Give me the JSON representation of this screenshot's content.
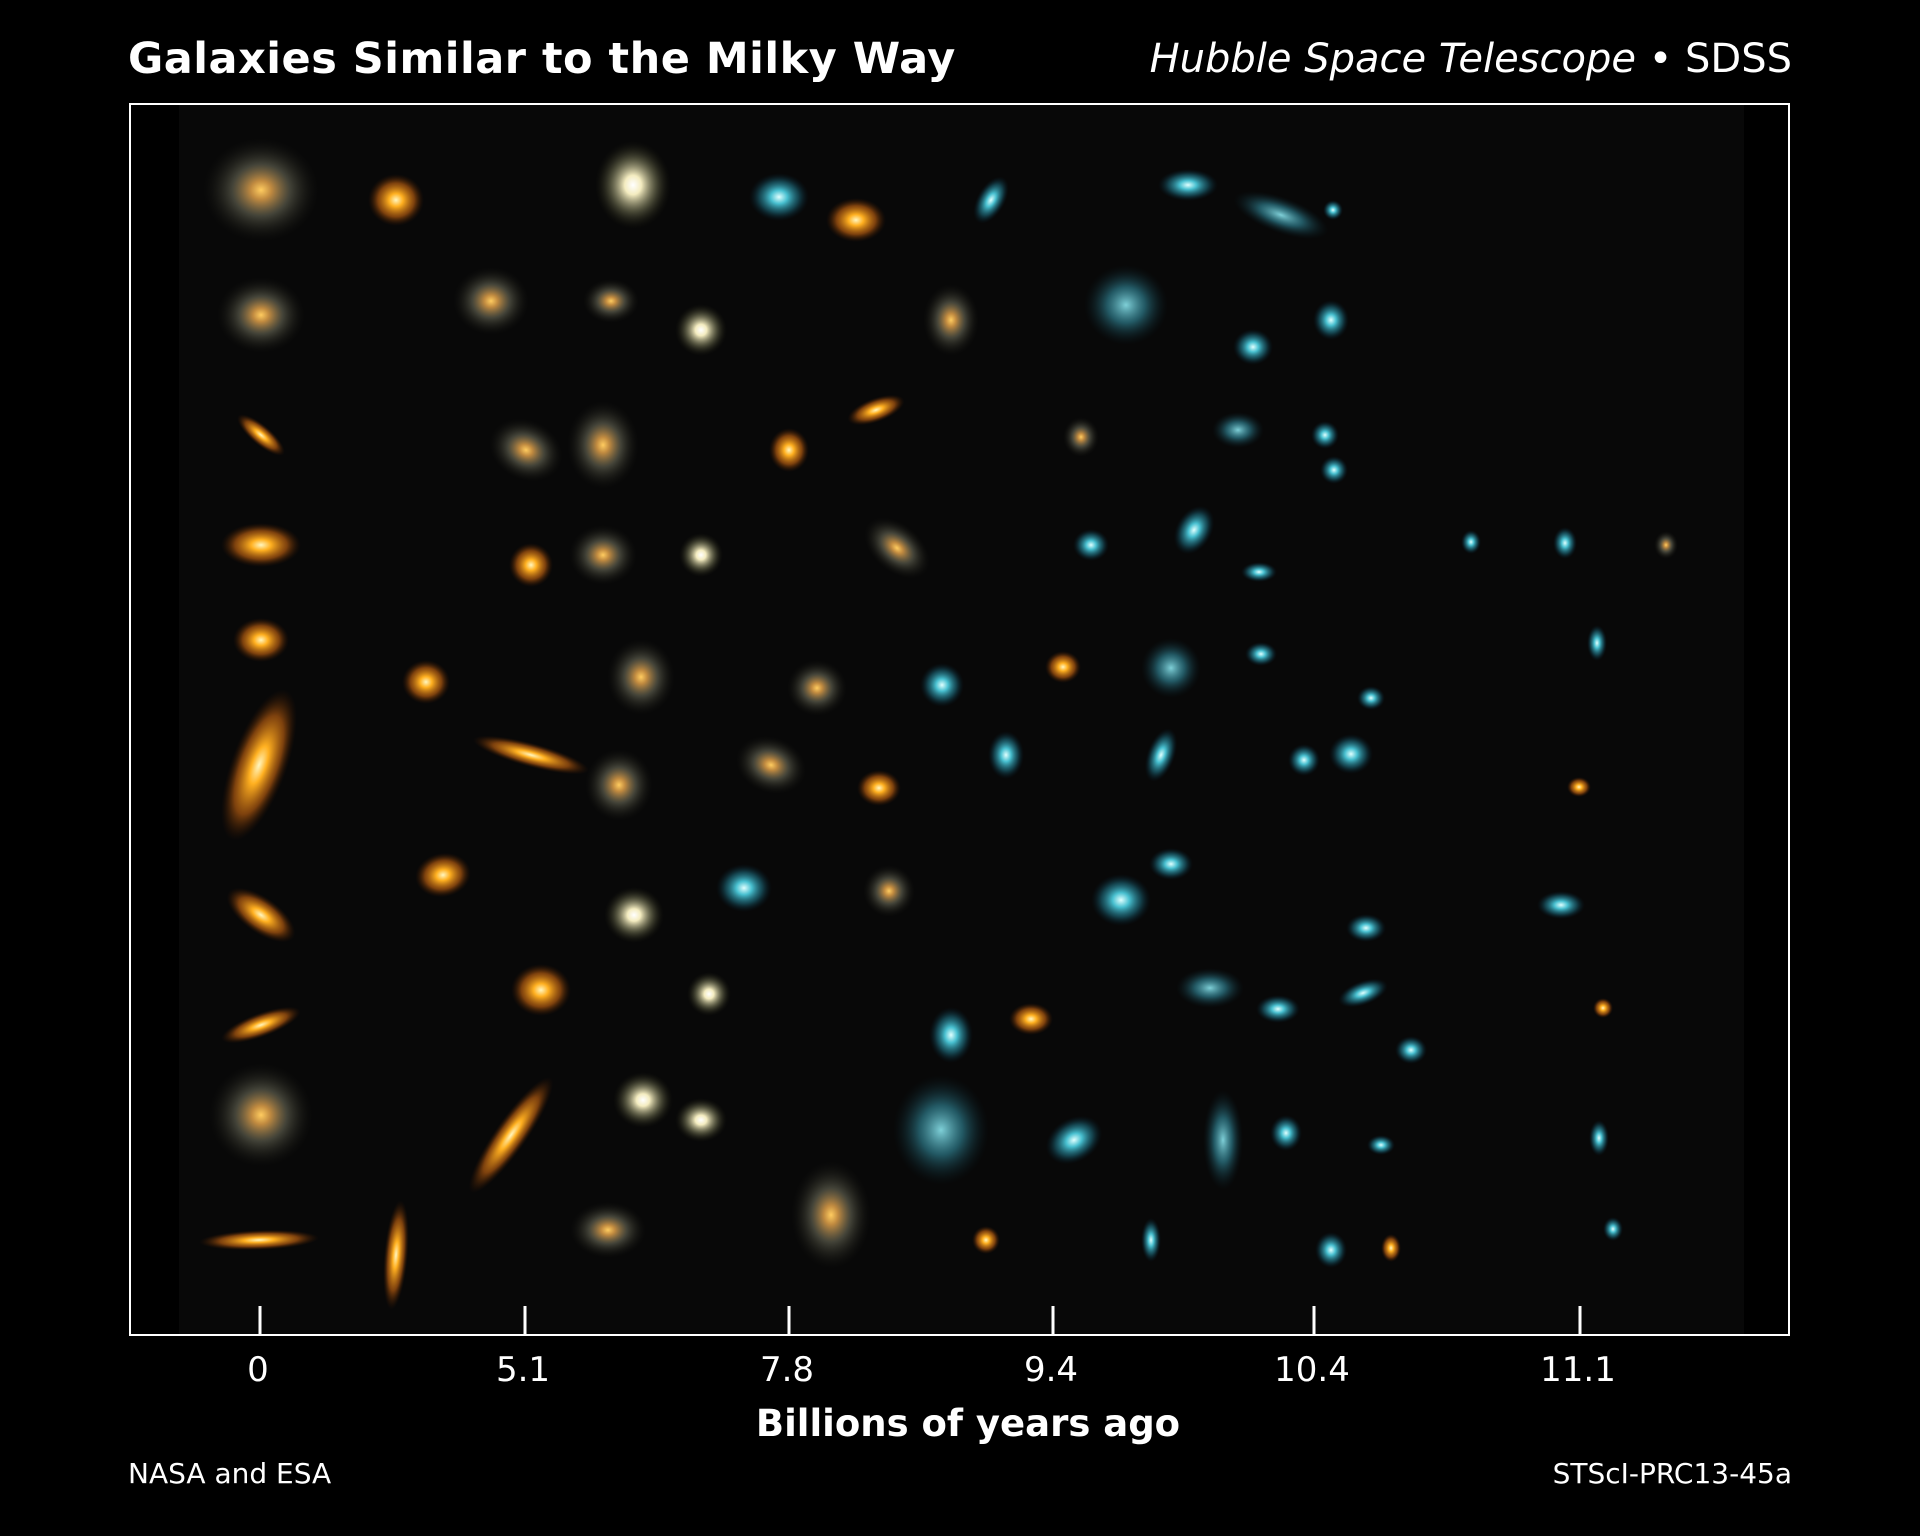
{
  "header": {
    "title": "Galaxies Similar to the Milky Way",
    "source_telescope": "Hubble Space Telescope",
    "source_separator": " • ",
    "source_survey": "SDSS"
  },
  "axis": {
    "ticks": [
      "0",
      "5.1",
      "7.8",
      "9.4",
      "10.4",
      "11.1"
    ],
    "title": "Billions of years ago"
  },
  "credits": {
    "left": "NASA and ESA",
    "right": "STScI-PRC13-45a"
  },
  "colors": {
    "background": "#000000",
    "frame": "#ffffff",
    "galaxy_nearby": "#ffb020",
    "galaxy_intermediate": "#e8e0b0",
    "galaxy_distant": "#40b8c8"
  }
}
